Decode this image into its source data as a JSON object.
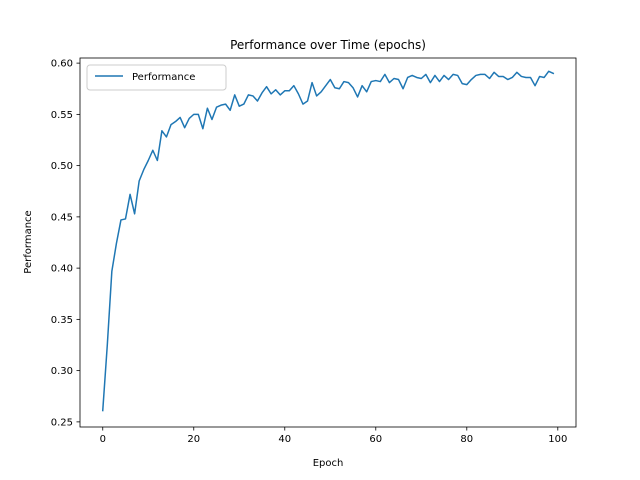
{
  "chart_data": {
    "type": "line",
    "title": "Performance over Time (epochs)",
    "xlabel": "Epoch",
    "ylabel": "Performance",
    "xlim": [
      -5,
      104
    ],
    "ylim": [
      0.245,
      0.605
    ],
    "x_ticks": [
      0,
      20,
      40,
      60,
      80,
      100
    ],
    "x_tick_labels": [
      "0",
      "20",
      "40",
      "60",
      "80",
      "100"
    ],
    "y_ticks": [
      0.25,
      0.3,
      0.35,
      0.4,
      0.45,
      0.5,
      0.55,
      0.6
    ],
    "y_tick_labels": [
      "0.25",
      "0.30",
      "0.35",
      "0.40",
      "0.45",
      "0.50",
      "0.55",
      "0.60"
    ],
    "grid": false,
    "legend_position": "top-left",
    "series": [
      {
        "name": "Performance",
        "color": "#1f77b4",
        "x": [
          0,
          1,
          2,
          3,
          4,
          5,
          6,
          7,
          8,
          9,
          10,
          11,
          12,
          13,
          14,
          15,
          16,
          17,
          18,
          19,
          20,
          21,
          22,
          23,
          24,
          25,
          26,
          27,
          28,
          29,
          30,
          31,
          32,
          33,
          34,
          35,
          36,
          37,
          38,
          39,
          40,
          41,
          42,
          43,
          44,
          45,
          46,
          47,
          48,
          49,
          50,
          51,
          52,
          53,
          54,
          55,
          56,
          57,
          58,
          59,
          60,
          61,
          62,
          63,
          64,
          65,
          66,
          67,
          68,
          69,
          70,
          71,
          72,
          73,
          74,
          75,
          76,
          77,
          78,
          79,
          80,
          81,
          82,
          83,
          84,
          85,
          86,
          87,
          88,
          89,
          90,
          91,
          92,
          93,
          94,
          95,
          96,
          97,
          98,
          99
        ],
        "values": [
          0.261,
          0.325,
          0.397,
          0.424,
          0.447,
          0.448,
          0.472,
          0.453,
          0.485,
          0.496,
          0.505,
          0.515,
          0.505,
          0.534,
          0.528,
          0.54,
          0.543,
          0.547,
          0.537,
          0.546,
          0.55,
          0.55,
          0.536,
          0.556,
          0.545,
          0.557,
          0.559,
          0.56,
          0.554,
          0.569,
          0.558,
          0.56,
          0.569,
          0.568,
          0.563,
          0.571,
          0.577,
          0.57,
          0.574,
          0.569,
          0.573,
          0.573,
          0.578,
          0.57,
          0.56,
          0.563,
          0.581,
          0.568,
          0.572,
          0.578,
          0.584,
          0.576,
          0.575,
          0.582,
          0.581,
          0.576,
          0.567,
          0.578,
          0.572,
          0.582,
          0.583,
          0.582,
          0.589,
          0.581,
          0.585,
          0.584,
          0.575,
          0.586,
          0.588,
          0.586,
          0.585,
          0.589,
          0.581,
          0.588,
          0.582,
          0.588,
          0.584,
          0.589,
          0.588,
          0.58,
          0.579,
          0.584,
          0.588,
          0.589,
          0.589,
          0.585,
          0.591,
          0.587,
          0.587,
          0.584,
          0.586,
          0.591,
          0.587,
          0.586,
          0.586,
          0.578,
          0.587,
          0.586,
          0.592,
          0.59
        ]
      }
    ]
  }
}
